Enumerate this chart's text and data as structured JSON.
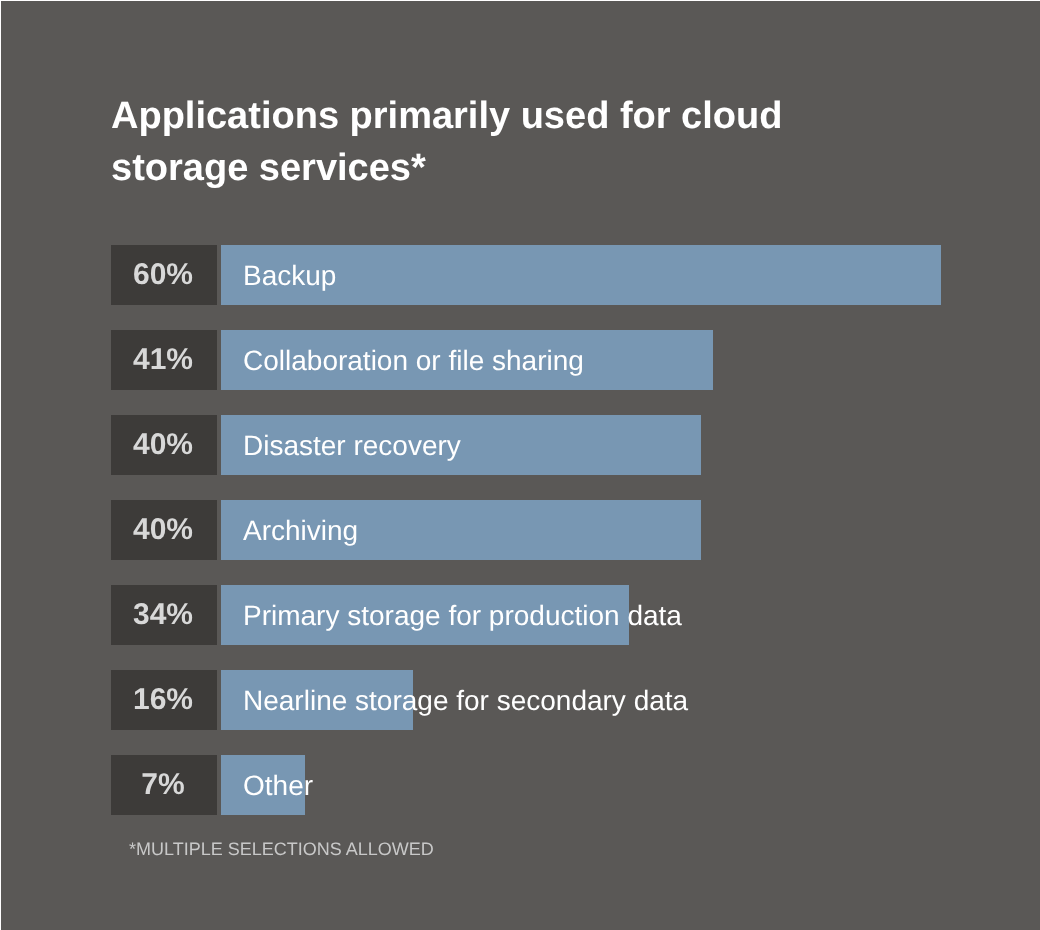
{
  "chart_data": {
    "type": "bar",
    "orientation": "horizontal",
    "title": "Applications primarily used for cloud storage services*",
    "categories": [
      "Backup",
      "Collaboration or file sharing",
      "Disaster recovery",
      "Archiving",
      "Primary storage for production data",
      "Nearline storage for secondary data",
      "Other"
    ],
    "values": [
      60,
      41,
      40,
      40,
      34,
      16,
      7
    ],
    "value_labels": [
      "60%",
      "41%",
      "40%",
      "40%",
      "34%",
      "16%",
      "7%"
    ],
    "color": "#7897b3",
    "annotations": [
      "*MULTIPLE SELECTIONS ALLOWED"
    ]
  }
}
